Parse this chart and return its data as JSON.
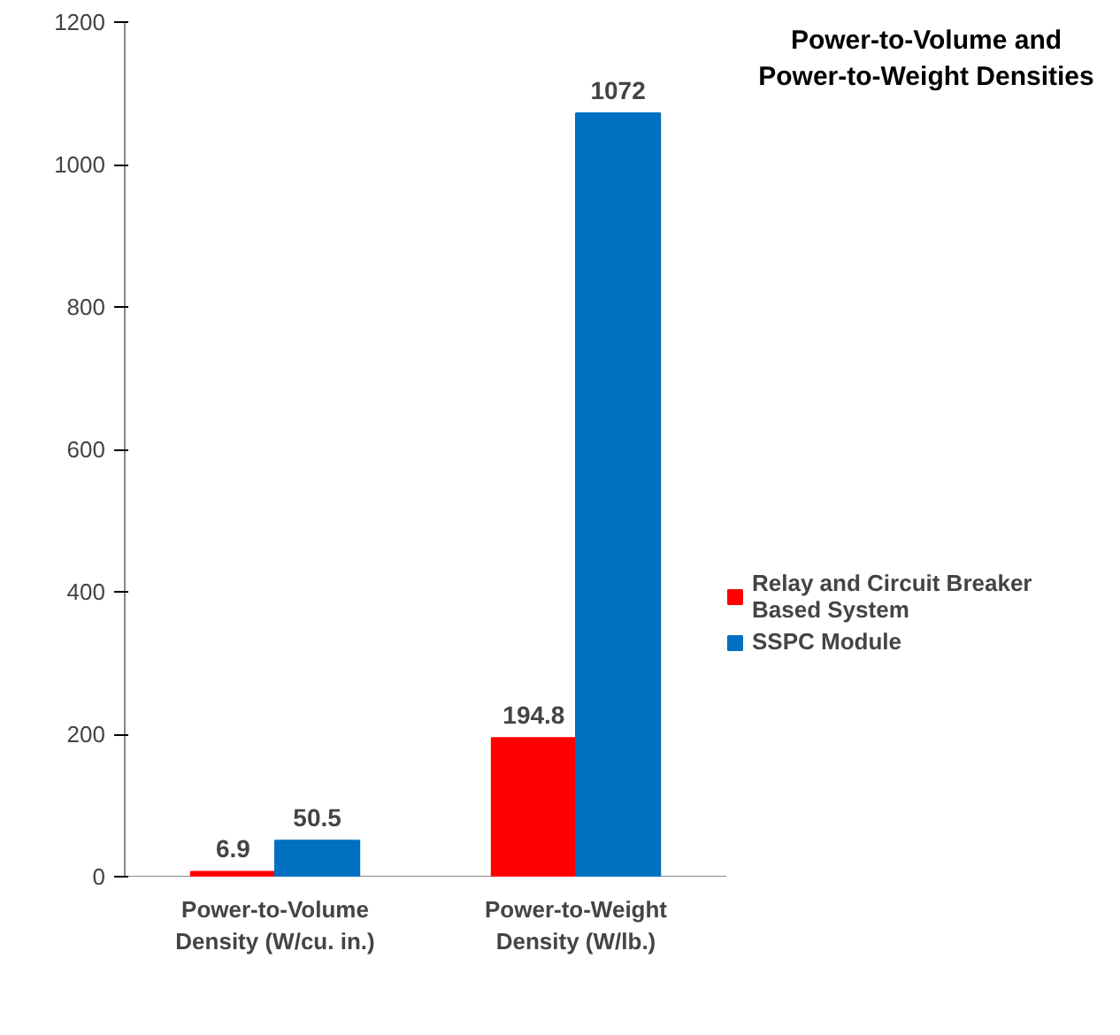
{
  "chart_data": {
    "type": "bar",
    "title": "Power-to-Volume and\nPower-to-Weight Densities",
    "categories": [
      "Power-to-Volume\nDensity (W/cu. in.)",
      "Power-to-Weight\nDensity (W/lb.)"
    ],
    "series": [
      {
        "name": "Relay and Circuit Breaker\nBased System",
        "color": "#ff0000",
        "values": [
          6.9,
          194.8
        ]
      },
      {
        "name": "SSPC Module",
        "color": "#0070c0",
        "values": [
          50.5,
          1072
        ]
      }
    ],
    "ylim": [
      0,
      1200
    ],
    "yticks": [
      0,
      200,
      400,
      600,
      800,
      1000,
      1200
    ],
    "grid": false,
    "legend": "right",
    "data_labels": true
  }
}
